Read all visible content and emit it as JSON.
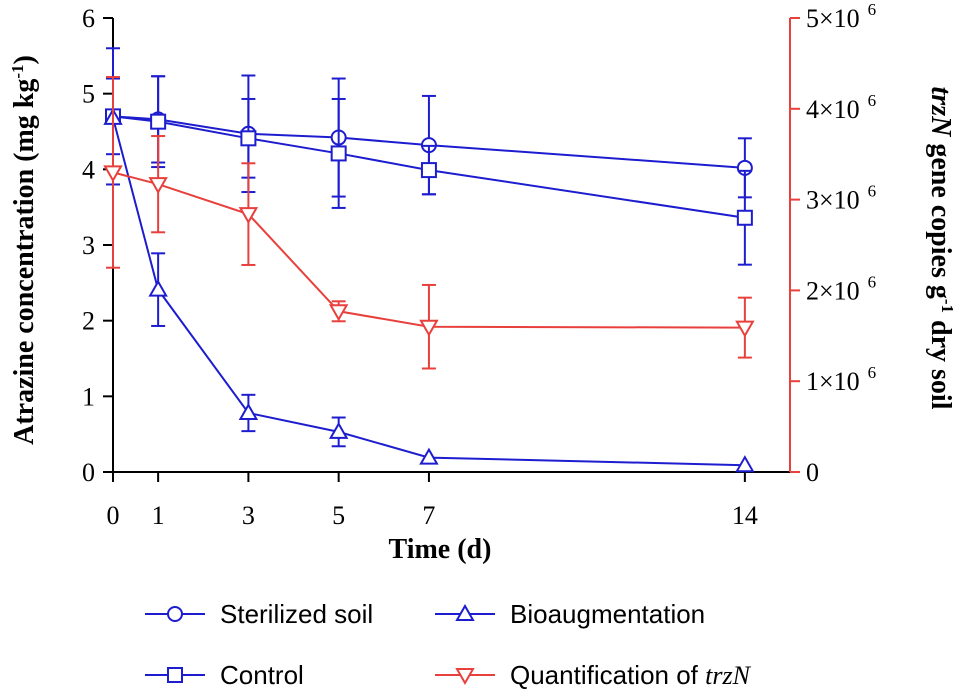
{
  "chart_data": {
    "type": "line",
    "x": [
      0,
      1,
      3,
      5,
      7,
      14
    ],
    "xlabel": "Time (d)",
    "xlim": [
      0,
      15
    ],
    "x_ticks": [
      "0",
      "1",
      "3",
      "5",
      "7",
      "14"
    ],
    "ylabel_left": {
      "main": "Atrazine concentration (mg kg",
      "sup": "-1",
      "close": ")"
    },
    "ylim_left": [
      0,
      6
    ],
    "y_ticks_left": [
      "0",
      "1",
      "2",
      "3",
      "4",
      "5",
      "6"
    ],
    "ylabel_right": {
      "italic": "trzN",
      "main": " gene copies g",
      "sup": "-1",
      "tail": " dry soil"
    },
    "ylim_right": [
      0,
      5000000
    ],
    "y_ticks_right": [
      {
        "value": 0,
        "base": "0",
        "exp": ""
      },
      {
        "value": 1000000,
        "base": "1×10",
        "exp": "6"
      },
      {
        "value": 2000000,
        "base": "2×10",
        "exp": "6"
      },
      {
        "value": 3000000,
        "base": "3×10",
        "exp": "6"
      },
      {
        "value": 4000000,
        "base": "4×10",
        "exp": "6"
      },
      {
        "value": 5000000,
        "base": "5×10",
        "exp": "6"
      }
    ],
    "series": [
      {
        "name": "Sterilized soil",
        "axis": "left",
        "marker": "circle",
        "color": "#1d1dcf",
        "values": [
          4.7,
          4.66,
          4.47,
          4.42,
          4.32,
          4.02
        ],
        "errors": [
          0.5,
          0.57,
          0.77,
          0.78,
          0.65,
          0.39
        ]
      },
      {
        "name": "Control",
        "axis": "left",
        "marker": "square",
        "color": "#1d1dcf",
        "values": [
          4.7,
          4.63,
          4.41,
          4.21,
          3.99,
          3.36
        ],
        "errors": [
          0.9,
          0.6,
          0.52,
          0.72,
          0.32,
          0.62
        ]
      },
      {
        "name": "Bioaugmentation",
        "axis": "left",
        "marker": "triangle",
        "color": "#1d1dcf",
        "values": [
          4.68,
          2.41,
          0.78,
          0.53,
          0.19,
          0.09
        ],
        "errors": [
          0.0,
          0.48,
          0.24,
          0.19,
          0.0,
          0.0
        ]
      },
      {
        "name": "Quantification of trzN",
        "axis": "right",
        "marker": "triangle-down",
        "color": "#e8403c",
        "values": [
          3300000,
          3170000,
          2840000,
          1770000,
          1600000,
          1590000
        ],
        "errors": [
          1050000,
          530000,
          560000,
          110000,
          460000,
          330000
        ]
      }
    ],
    "legend": {
      "placement": "bottom",
      "items": [
        {
          "series": 0,
          "label": "Sterilized soil"
        },
        {
          "series": 2,
          "label": "Bioaugmentation"
        },
        {
          "series": 1,
          "label": "Control"
        },
        {
          "series": 3,
          "label_main": "Quantification of ",
          "label_italic": "trzN"
        }
      ]
    }
  }
}
